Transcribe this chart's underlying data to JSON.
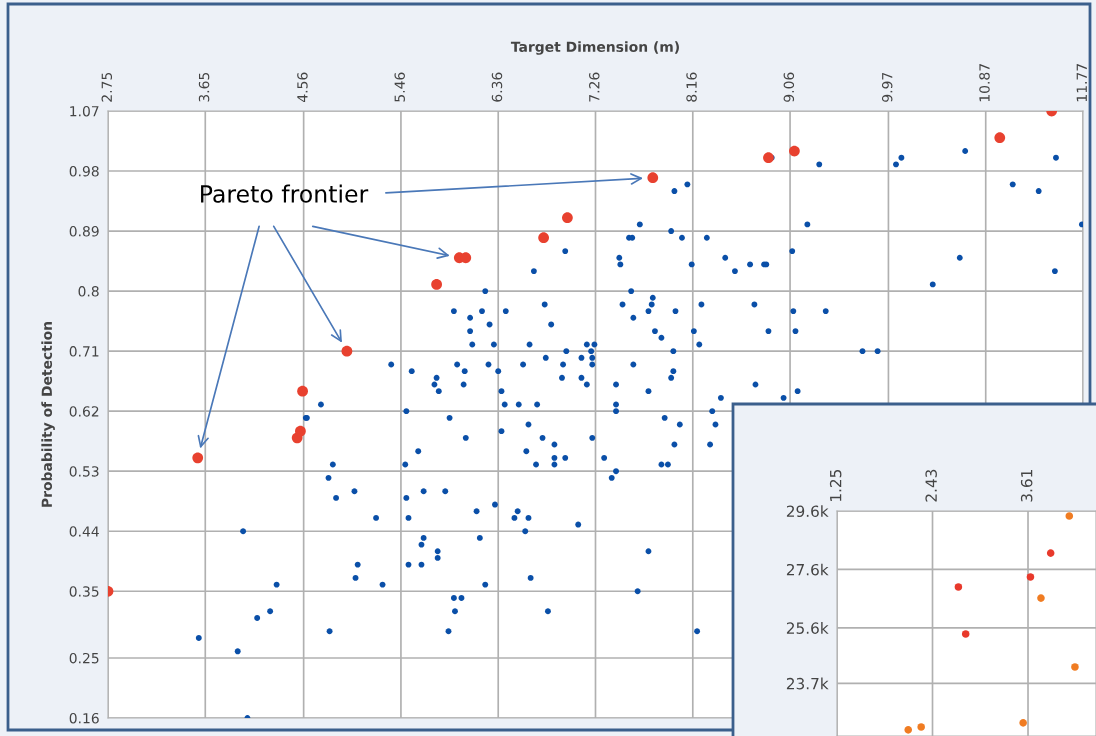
{
  "chart_data": [
    {
      "type": "scatter",
      "xlabel": "Target Dimension (m)",
      "ylabel": "Probability of Detection",
      "annotations": [
        "Pareto frontier"
      ],
      "xlim": [
        2.75,
        11.77
      ],
      "ylim": [
        0.16,
        1.07
      ],
      "xticks": [
        2.75,
        3.65,
        4.56,
        5.46,
        6.36,
        7.26,
        8.16,
        9.06,
        9.97,
        10.87,
        11.77
      ],
      "yticks": [
        0.16,
        0.25,
        0.35,
        0.44,
        0.53,
        0.62,
        0.71,
        0.8,
        0.89,
        0.98,
        1.07
      ],
      "grid": true,
      "marker": "circle",
      "legend": false,
      "series": [
        {
          "color": "#0a4fa8",
          "x": [
            5.37,
            5.56,
            5.77,
            4.72,
            4.58,
            5.51,
            7.99,
            8.11,
            7.67,
            7.57,
            7.6,
            7.96,
            8.06,
            8.29,
            6.98,
            7.48,
            7.49,
            8.15,
            8.46,
            8.55,
            8.69,
            8.82,
            6.69,
            6.24,
            7.59,
            7.79,
            7.51,
            7.78,
            7.75,
            7.61,
            8.0,
            8.24,
            8.73,
            5.95,
            6.1,
            6.21,
            6.43,
            6.79,
            6.1,
            6.28,
            6.85,
            7.81,
            7.87,
            8.17,
            6.12,
            6.32,
            6.65,
            7.18,
            7.25,
            7.22,
            7.23,
            7.23,
            7.98,
            8.22,
            5.98,
            6.05,
            6.27,
            6.36,
            6.59,
            6.8,
            6.99,
            6.96,
            7.13,
            7.61,
            7.98,
            7.96,
            5.79,
            5.81,
            6.04,
            6.95,
            7.13,
            7.18,
            7.45,
            8.74,
            6.39,
            6.42,
            6.55,
            6.72,
            7.45,
            7.45,
            7.75,
            8.42,
            8.34,
            7.9,
            5.91,
            8.89,
            9.33,
            10.04,
            10.09,
            10.68,
            11.52,
            11.12,
            11.36,
            11.76,
            9.22,
            9.08,
            8.84,
            10.63,
            10.38,
            11.51,
            9.09,
            9.39,
            8.86,
            9.11,
            9.73,
            9.87,
            9.13,
            9.0,
            4.59,
            5.62,
            5.5,
            4.83,
            4.79,
            4.86,
            5.03,
            5.23,
            5.51,
            5.67,
            5.53,
            4.0,
            5.67,
            5.65,
            5.53,
            5.65,
            5.06,
            5.04,
            5.29,
            4.31,
            4.13,
            4.25,
            4.8,
            3.59,
            3.95,
            4.04,
            6.06,
            6.39,
            6.64,
            6.77,
            6.88,
            6.88,
            6.88,
            6.62,
            6.71,
            6.98,
            7.23,
            7.34,
            7.45,
            7.41,
            8.04,
            7.99,
            7.87,
            7.93,
            8.32,
            8.37,
            5.87,
            6.16,
            6.33,
            6.54,
            6.51,
            6.64,
            6.61,
            7.1,
            6.19,
            5.8,
            5.8,
            6.24,
            6.66,
            5.95,
            6.02,
            5.96,
            5.9,
            6.82,
            7.75,
            7.65,
            8.2
          ],
          "values": [
            0.69,
            0.68,
            0.66,
            0.63,
            0.61,
            0.62,
            0.95,
            0.96,
            0.9,
            0.88,
            0.88,
            0.89,
            0.88,
            0.88,
            0.86,
            0.85,
            0.84,
            0.84,
            0.85,
            0.83,
            0.84,
            0.84,
            0.83,
            0.8,
            0.8,
            0.79,
            0.78,
            0.78,
            0.77,
            0.76,
            0.77,
            0.78,
            0.78,
            0.77,
            0.76,
            0.77,
            0.77,
            0.78,
            0.74,
            0.75,
            0.75,
            0.74,
            0.73,
            0.74,
            0.72,
            0.72,
            0.72,
            0.72,
            0.72,
            0.71,
            0.7,
            0.69,
            0.71,
            0.72,
            0.69,
            0.68,
            0.69,
            0.68,
            0.69,
            0.7,
            0.71,
            0.69,
            0.7,
            0.69,
            0.68,
            0.67,
            0.67,
            0.65,
            0.66,
            0.67,
            0.67,
            0.66,
            0.66,
            0.66,
            0.65,
            0.63,
            0.63,
            0.63,
            0.63,
            0.62,
            0.65,
            0.64,
            0.62,
            0.61,
            0.61,
            1.0,
            0.99,
            0.99,
            1.0,
            1.01,
            1.0,
            0.96,
            0.95,
            0.9,
            0.9,
            0.86,
            0.84,
            0.85,
            0.81,
            0.83,
            0.77,
            0.77,
            0.74,
            0.74,
            0.71,
            0.71,
            0.65,
            0.64,
            0.61,
            0.56,
            0.54,
            0.54,
            0.52,
            0.49,
            0.5,
            0.46,
            0.49,
            0.5,
            0.46,
            0.44,
            0.43,
            0.42,
            0.39,
            0.39,
            0.39,
            0.37,
            0.36,
            0.36,
            0.31,
            0.32,
            0.29,
            0.28,
            0.26,
            0.16,
            0.58,
            0.59,
            0.6,
            0.58,
            0.57,
            0.55,
            0.54,
            0.56,
            0.54,
            0.55,
            0.58,
            0.55,
            0.53,
            0.52,
            0.6,
            0.57,
            0.54,
            0.54,
            0.57,
            0.6,
            0.5,
            0.47,
            0.48,
            0.47,
            0.46,
            0.46,
            0.44,
            0.45,
            0.43,
            0.41,
            0.4,
            0.36,
            0.37,
            0.34,
            0.34,
            0.32,
            0.29,
            0.32,
            0.41,
            0.35,
            0.29
          ]
        },
        {
          "color": "#e8412f",
          "x": [
            2.75,
            3.58,
            4.5,
            4.53,
            4.55,
            4.96,
            5.79,
            6.0,
            6.06,
            6.78,
            7.0,
            7.79,
            8.86,
            9.1,
            11.0,
            11.48
          ],
          "values": [
            0.35,
            0.55,
            0.58,
            0.59,
            0.65,
            0.71,
            0.81,
            0.85,
            0.85,
            0.88,
            0.91,
            0.97,
            1.0,
            1.01,
            1.03,
            1.07
          ]
        }
      ]
    },
    {
      "type": "scatter",
      "xlim": [
        1.25,
        4.45
      ],
      "ylim": [
        21900,
        29600
      ],
      "xticks": [
        1.25,
        2.43,
        3.61
      ],
      "yticks": [
        {
          "value": 29600,
          "label": "29.6k"
        },
        {
          "value": 27600,
          "label": "27.6k"
        },
        {
          "value": 25600,
          "label": "25.6k"
        },
        {
          "value": 23700,
          "label": "23.7k"
        }
      ],
      "grid": true,
      "marker": "circle",
      "legend": false,
      "series": [
        {
          "color": "#f07c22",
          "x": [
            4.12,
            3.77,
            4.19,
            3.55,
            2.13,
            2.29
          ],
          "values": [
            29430,
            26620,
            24260,
            22350,
            22110,
            22210
          ]
        },
        {
          "color": "#e8392b",
          "x": [
            2.75,
            2.84,
            3.89,
            3.64
          ],
          "values": [
            27000,
            25390,
            28160,
            27340
          ]
        }
      ]
    }
  ]
}
